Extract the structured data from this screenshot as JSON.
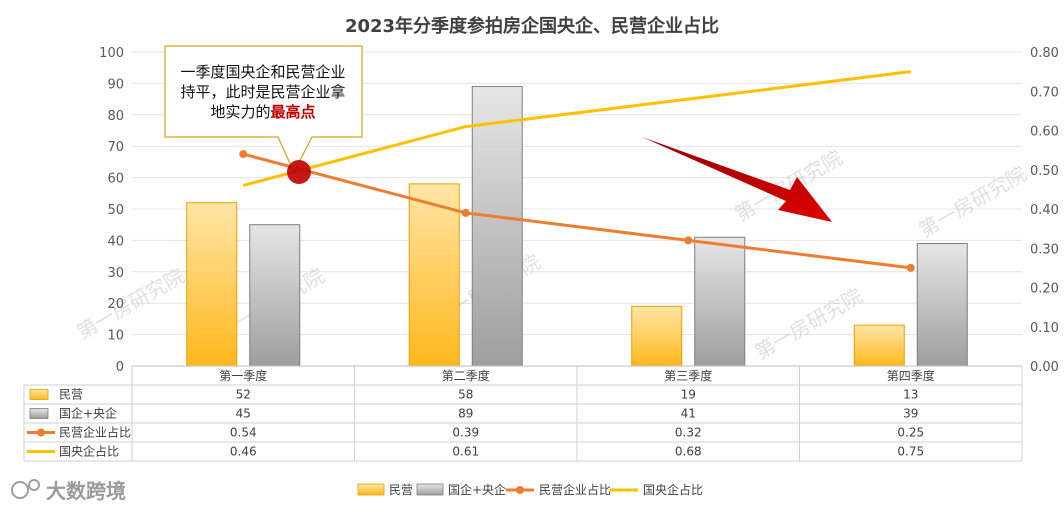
{
  "chart_data": {
    "type": "bar",
    "title": "2023年分季度参拍房企国央企、民营企业占比",
    "categories": [
      "第一季度",
      "第二季度",
      "第三季度",
      "第四季度"
    ],
    "series": [
      {
        "name": "民营",
        "type": "bar",
        "axis": "left",
        "values": [
          52,
          58,
          19,
          13
        ],
        "color": "#FFC000"
      },
      {
        "name": "国企+央企",
        "type": "bar",
        "axis": "left",
        "values": [
          45,
          89,
          41,
          39
        ],
        "color": "#A6A6A6"
      },
      {
        "name": "民营企业占比",
        "type": "line",
        "axis": "right",
        "values": [
          0.54,
          0.39,
          0.32,
          0.25
        ],
        "color": "#ED7D31",
        "display": [
          "0.54",
          "0.39",
          "0.32",
          "0.25"
        ]
      },
      {
        "name": "国央企占比",
        "type": "line",
        "axis": "right",
        "values": [
          0.46,
          0.61,
          0.68,
          0.75
        ],
        "color": "#FFC000",
        "display": [
          "0.46",
          "0.61",
          "0.68",
          "0.75"
        ]
      }
    ],
    "y_left": {
      "range": [
        0,
        100
      ],
      "ticks": [
        "0",
        "10",
        "20",
        "30",
        "40",
        "50",
        "60",
        "70",
        "80",
        "90",
        "100"
      ]
    },
    "y_right": {
      "range": [
        0,
        0.8
      ],
      "ticks": [
        "0.00",
        "0.10",
        "0.20",
        "0.30",
        "0.40",
        "0.50",
        "0.60",
        "0.70",
        "0.80"
      ]
    },
    "grid": true,
    "legend": "bottom",
    "annotation": {
      "lines": [
        "一季度国央企和民营企业",
        "持平，此时是民营企业拿"
      ],
      "last_line_prefix": "地实力的",
      "last_line_emphasis": "最高点"
    },
    "watermark": "第一房研究院"
  },
  "brand": "大数跨境",
  "colors": {
    "private_bar": "#FFC000",
    "soe_bar": "#A6A6A6",
    "private_line": "#ED7D31",
    "soe_line": "#FFC000",
    "arrow": "#C00000"
  }
}
